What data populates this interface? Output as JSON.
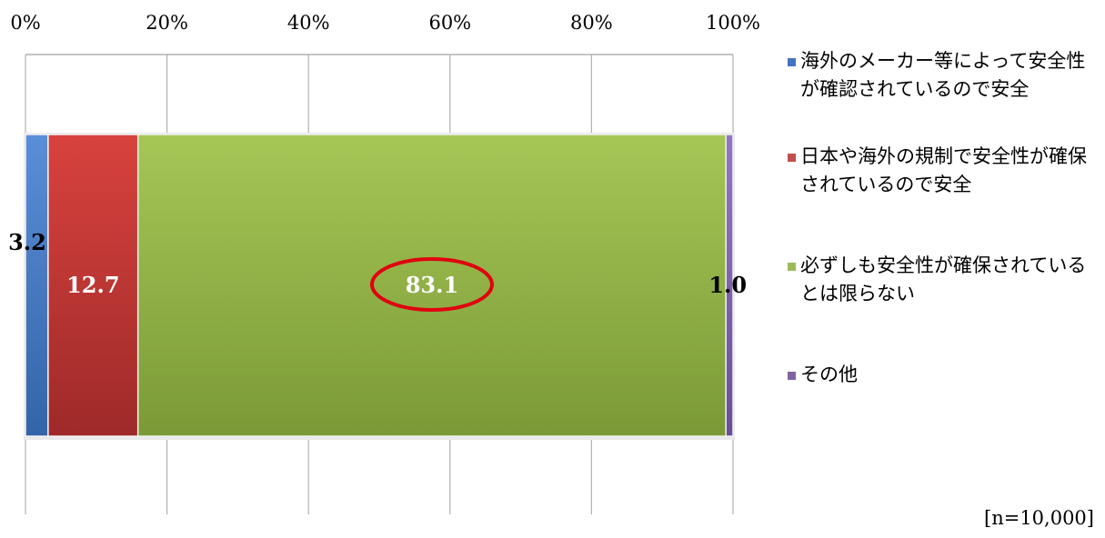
{
  "chart_data": {
    "type": "bar",
    "orientation": "horizontal",
    "stacked": true,
    "xlim": [
      0,
      100
    ],
    "x_ticks": [
      "0%",
      "20%",
      "40%",
      "60%",
      "80%",
      "100%"
    ],
    "categories": [
      ""
    ],
    "series": [
      {
        "name": "海外のメーカー等によって安全性が確認されているので安全",
        "values": [
          3.2
        ],
        "label": "3.2",
        "color": "#4472c4"
      },
      {
        "name": "日本や海外の規制で安全性が確保されているので安全",
        "values": [
          12.7
        ],
        "label": "12.7",
        "color": "#c0504d"
      },
      {
        "name": "必ずしも安全性が確保されているとは限らない",
        "values": [
          83.1
        ],
        "label": "83.1",
        "color": "#9bbb59",
        "highlighted": true
      },
      {
        "name": "その他",
        "values": [
          1.0
        ],
        "label": "1.0",
        "color": "#8064a2"
      }
    ],
    "legend_position": "right",
    "grid": true
  },
  "legend": {
    "items": [
      {
        "label": "海外のメーカー等によって安全性が確認されているので安全",
        "color": "#4472c4"
      },
      {
        "label": "日本や海外の規制で安全性が確保されているので安全",
        "color": "#c0504d"
      },
      {
        "label": "必ずしも安全性が確保されているとは限らない",
        "color": "#9bbb59"
      },
      {
        "label": "その他",
        "color": "#8064a2"
      }
    ]
  },
  "footnote": "[n=10,000]",
  "colors": {
    "highlight_ring": "#e0000f",
    "gridline": "#b0b0b0"
  }
}
